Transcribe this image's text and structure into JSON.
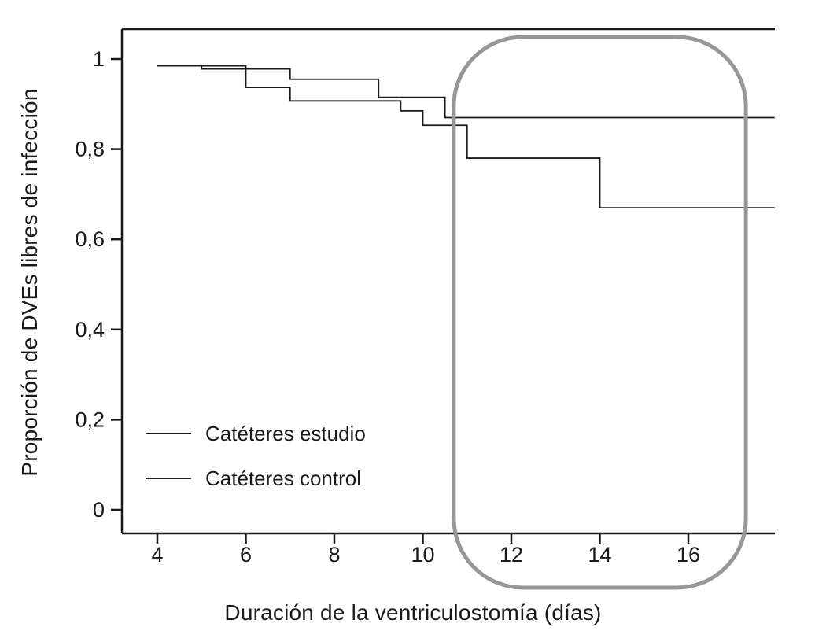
{
  "chart_data": {
    "type": "line",
    "subtype": "kaplan-meier-step",
    "title": "",
    "xlabel": "Duración de la ventriculostomía (días)",
    "ylabel": "Proporción de DVEs libres de infección",
    "x_ticks": [
      4,
      6,
      8,
      10,
      12,
      14,
      16
    ],
    "x_tick_labels": [
      "4",
      "6",
      "8",
      "10",
      "12",
      "14",
      "16"
    ],
    "y_ticks": [
      0,
      0.2,
      0.4,
      0.6,
      0.8,
      1
    ],
    "y_tick_labels": [
      "0",
      "0,2",
      "0,4",
      "0,6",
      "0,8",
      "1"
    ],
    "xlim": [
      3.2,
      17.95
    ],
    "ylim": [
      -0.05,
      1.07
    ],
    "grid": false,
    "legend_position": "lower-left-inside",
    "line_color": "#1a1a1a",
    "series": [
      {
        "name": "Catéteres estudio",
        "color": "#1a1a1a",
        "steps": [
          [
            4,
            0.985
          ],
          [
            5,
            0.978
          ],
          [
            7,
            0.955
          ],
          [
            9,
            0.915
          ],
          [
            10.5,
            0.87
          ],
          [
            17.95,
            0.87
          ]
        ]
      },
      {
        "name": "Catéteres control",
        "color": "#1a1a1a",
        "steps": [
          [
            4,
            0.985
          ],
          [
            6,
            0.937
          ],
          [
            7,
            0.907
          ],
          [
            9.5,
            0.885
          ],
          [
            10,
            0.853
          ],
          [
            11,
            0.78
          ],
          [
            14,
            0.67
          ],
          [
            17.95,
            0.67
          ]
        ]
      }
    ],
    "annotation": {
      "type": "rounded-rect-highlight",
      "x_range": [
        10.7,
        17.3
      ],
      "color": "#979797"
    }
  },
  "legend": {
    "items": [
      {
        "label": "Catéteres estudio"
      },
      {
        "label": "Catéteres control"
      }
    ]
  }
}
